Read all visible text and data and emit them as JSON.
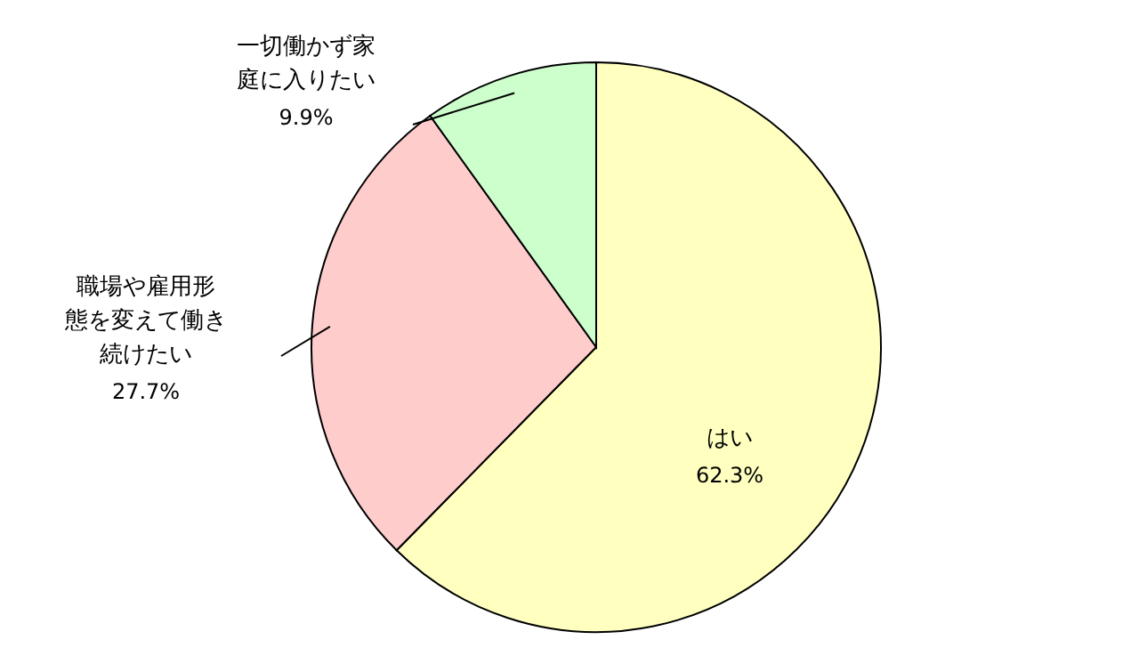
{
  "chart_data": {
    "type": "pie",
    "categories": [
      "はい",
      "職場や雇用形態を変えて働き続けたい",
      "一切働かず家庭に入りたい"
    ],
    "values": [
      62.3,
      27.7,
      9.9
    ],
    "value_labels": [
      "62.3%",
      "27.7%",
      "9.9%"
    ],
    "colors": [
      "#ffffc0",
      "#ffcccc",
      "#ccffcc"
    ]
  }
}
